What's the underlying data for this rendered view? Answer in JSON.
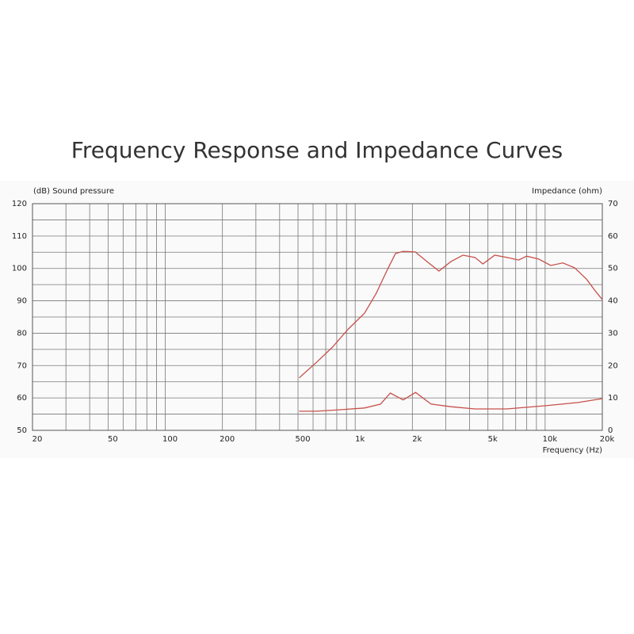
{
  "chart_data": {
    "type": "line",
    "title": "Frequency Response and Impedance Curves",
    "y_label": "(dB) Sound pressure",
    "y2_label": "Impedance (ohm)",
    "x_label": "Frequency (Hz)",
    "log_x": true,
    "grid": true,
    "xlim": [
      20,
      20000
    ],
    "xticks": [
      20,
      50,
      100,
      200,
      500,
      {
        "value": 1000,
        "label": "1k"
      },
      {
        "value": 2000,
        "label": "2k"
      },
      {
        "value": 5000,
        "label": "5k"
      },
      {
        "value": 10000,
        "label": "10k"
      },
      {
        "value": 20000,
        "label": "20k"
      }
    ],
    "xminor": [
      30,
      40,
      60,
      70,
      80,
      90,
      300,
      400,
      600,
      700,
      800,
      900,
      3000,
      4000,
      6000,
      7000,
      8000,
      9000
    ],
    "ylim": [
      50,
      120
    ],
    "yticks": [
      50,
      60,
      70,
      80,
      90,
      100,
      110,
      120
    ],
    "yminor": [
      55,
      65,
      75,
      85,
      95,
      105,
      115
    ],
    "y2lim": [
      0,
      70
    ],
    "y2ticks": [
      0,
      10,
      20,
      30,
      40,
      50,
      60,
      70
    ],
    "series": [
      {
        "color": "#c8504a",
        "x": [
          507,
          626,
          759,
          921,
          1120,
          1290,
          1480,
          1630,
          1790,
          2070,
          2390,
          2760,
          3190,
          3690,
          4270,
          4700,
          5430,
          6280,
          7260,
          7990,
          9250,
          10700,
          12400,
          14300,
          16500,
          18500,
          20000
        ],
        "values": [
          66.2,
          71,
          75.7,
          81.3,
          86.2,
          92.3,
          99.7,
          104.6,
          105.3,
          105.1,
          102.1,
          99.2,
          102.1,
          104.1,
          103.4,
          101.4,
          104.1,
          103.4,
          102.6,
          103.8,
          102.9,
          100.9,
          101.7,
          100.2,
          96.7,
          92.8,
          90.4
        ]
      },
      {
        "color": "#c8504a",
        "axis": "y2",
        "x": [
          507,
          626,
          852,
          1120,
          1360,
          1530,
          1790,
          2080,
          2510,
          3190,
          4270,
          6280,
          10100,
          14900,
          20000
        ],
        "values": [
          5.9,
          5.9,
          6.4,
          6.9,
          8.1,
          11.5,
          9.4,
          11.7,
          8.1,
          7.3,
          6.6,
          6.6,
          7.6,
          8.6,
          9.8
        ]
      }
    ]
  }
}
